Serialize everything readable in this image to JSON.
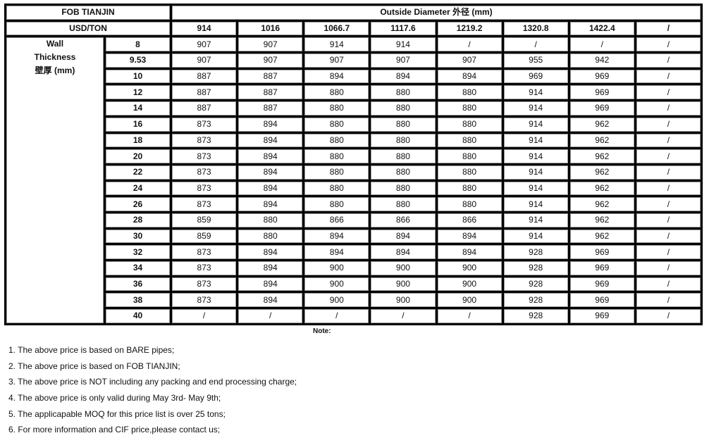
{
  "table": {
    "corner_line1": "FOB TIANJIN",
    "corner_line2": "USD/TON",
    "od_header": "Outside Diameter 外径 (mm)",
    "wall_label": [
      "Wall",
      "Thickness",
      "壁厚 (mm)"
    ],
    "diameters": [
      "914",
      "1016",
      "1066.7",
      "1117.6",
      "1219.2",
      "1320.8",
      "1422.4",
      "/"
    ],
    "rows": [
      {
        "wt": "8",
        "prices": [
          "907",
          "907",
          "914",
          "914",
          "/",
          "/",
          "/",
          "/"
        ]
      },
      {
        "wt": "9.53",
        "prices": [
          "907",
          "907",
          "907",
          "907",
          "907",
          "955",
          "942",
          "/"
        ]
      },
      {
        "wt": "10",
        "prices": [
          "887",
          "887",
          "894",
          "894",
          "894",
          "969",
          "969",
          "/"
        ]
      },
      {
        "wt": "12",
        "prices": [
          "887",
          "887",
          "880",
          "880",
          "880",
          "914",
          "969",
          "/"
        ]
      },
      {
        "wt": "14",
        "prices": [
          "887",
          "887",
          "880",
          "880",
          "880",
          "914",
          "969",
          "/"
        ]
      },
      {
        "wt": "16",
        "prices": [
          "873",
          "894",
          "880",
          "880",
          "880",
          "914",
          "962",
          "/"
        ]
      },
      {
        "wt": "18",
        "prices": [
          "873",
          "894",
          "880",
          "880",
          "880",
          "914",
          "962",
          "/"
        ]
      },
      {
        "wt": "20",
        "prices": [
          "873",
          "894",
          "880",
          "880",
          "880",
          "914",
          "962",
          "/"
        ]
      },
      {
        "wt": "22",
        "prices": [
          "873",
          "894",
          "880",
          "880",
          "880",
          "914",
          "962",
          "/"
        ]
      },
      {
        "wt": "24",
        "prices": [
          "873",
          "894",
          "880",
          "880",
          "880",
          "914",
          "962",
          "/"
        ]
      },
      {
        "wt": "26",
        "prices": [
          "873",
          "894",
          "880",
          "880",
          "880",
          "914",
          "962",
          "/"
        ]
      },
      {
        "wt": "28",
        "prices": [
          "859",
          "880",
          "866",
          "866",
          "866",
          "914",
          "962",
          "/"
        ]
      },
      {
        "wt": "30",
        "prices": [
          "859",
          "880",
          "894",
          "894",
          "894",
          "914",
          "962",
          "/"
        ]
      },
      {
        "wt": "32",
        "prices": [
          "873",
          "894",
          "894",
          "894",
          "894",
          "928",
          "969",
          "/"
        ]
      },
      {
        "wt": "34",
        "prices": [
          "873",
          "894",
          "900",
          "900",
          "900",
          "928",
          "969",
          "/"
        ]
      },
      {
        "wt": "36",
        "prices": [
          "873",
          "894",
          "900",
          "900",
          "900",
          "928",
          "969",
          "/"
        ]
      },
      {
        "wt": "38",
        "prices": [
          "873",
          "894",
          "900",
          "900",
          "900",
          "928",
          "969",
          "/"
        ]
      },
      {
        "wt": "40",
        "prices": [
          "/",
          "/",
          "/",
          "/",
          "/",
          "928",
          "969",
          "/"
        ]
      }
    ]
  },
  "note_title": "Note:",
  "notes": [
    "1. The above price is based on BARE pipes;",
    "2. The above price is based on FOB TIANJIN;",
    "3. The above price is NOT including any packing and end processing charge;",
    "4. The above price is only valid during  May 3rd- May 9th;",
    "5. The applicapable MOQ for this price list is over 25 tons;",
    "6. For more information and CIF price,please contact us;"
  ]
}
